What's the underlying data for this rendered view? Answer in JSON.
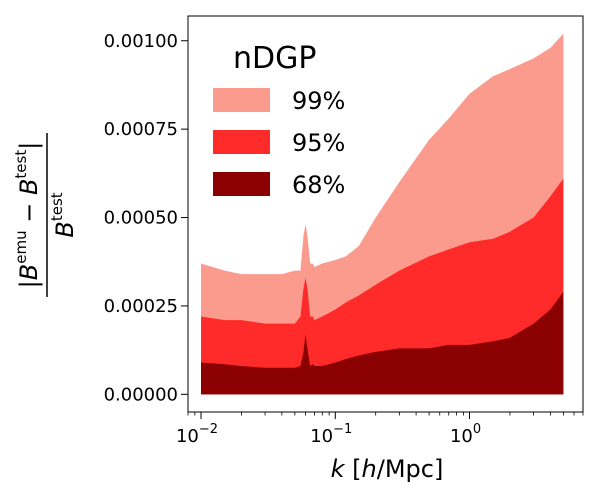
{
  "chart_data": {
    "type": "area",
    "xscale": "log",
    "xlim": [
      0.008,
      7
    ],
    "ylim": [
      -5e-05,
      0.00107
    ],
    "xlabel": "k [h/Mpc]",
    "ylabel": "|B^emu − B^test| / B^test",
    "x_ticks": [
      {
        "value": 0.01,
        "label": "10",
        "exp": "−2"
      },
      {
        "value": 0.1,
        "label": "10",
        "exp": "−1"
      },
      {
        "value": 1,
        "label": "10",
        "exp": "0"
      }
    ],
    "y_ticks": [
      {
        "value": 0.0,
        "label": "0.00000"
      },
      {
        "value": 0.00025,
        "label": "0.00025"
      },
      {
        "value": 0.0005,
        "label": "0.00050"
      },
      {
        "value": 0.00075,
        "label": "0.00075"
      },
      {
        "value": 0.001,
        "label": "0.00100"
      }
    ],
    "legend": {
      "title": "nDGP",
      "placement": "upper-left"
    },
    "x": [
      0.01,
      0.015,
      0.02,
      0.03,
      0.04,
      0.05,
      0.055,
      0.058,
      0.06,
      0.062,
      0.065,
      0.068,
      0.07,
      0.08,
      0.1,
      0.12,
      0.15,
      0.2,
      0.3,
      0.5,
      0.7,
      1.0,
      1.5,
      2.0,
      3.0,
      4.0,
      5.0
    ],
    "series": [
      {
        "name": "99%",
        "color": "#fa9b8e",
        "values": [
          0.00037,
          0.00035,
          0.00034,
          0.00034,
          0.00034,
          0.00035,
          0.00035,
          0.00045,
          0.00048,
          0.00045,
          0.00037,
          0.00037,
          0.00036,
          0.00037,
          0.00038,
          0.00039,
          0.00042,
          0.0005,
          0.0006,
          0.00072,
          0.00078,
          0.00085,
          0.0009,
          0.00092,
          0.00095,
          0.00098,
          0.00102
        ]
      },
      {
        "name": "95%",
        "color": "#ff2b2b",
        "values": [
          0.00022,
          0.00021,
          0.00021,
          0.0002,
          0.0002,
          0.0002,
          0.00022,
          0.0003,
          0.00033,
          0.0003,
          0.00022,
          0.00022,
          0.00021,
          0.00022,
          0.00024,
          0.00026,
          0.00028,
          0.00031,
          0.00035,
          0.00039,
          0.00041,
          0.00043,
          0.00044,
          0.00046,
          0.0005,
          0.00056,
          0.00061
        ]
      },
      {
        "name": "68%",
        "color": "#8b0000",
        "values": [
          9e-05,
          8.5e-05,
          8e-05,
          7.5e-05,
          7.5e-05,
          7.5e-05,
          8e-05,
          0.00012,
          0.00017,
          0.00013,
          8e-05,
          8.5e-05,
          8e-05,
          8e-05,
          9e-05,
          0.0001,
          0.00011,
          0.00012,
          0.00013,
          0.00013,
          0.00014,
          0.00014,
          0.00015,
          0.00016,
          0.0002,
          0.00024,
          0.00029
        ]
      }
    ]
  }
}
